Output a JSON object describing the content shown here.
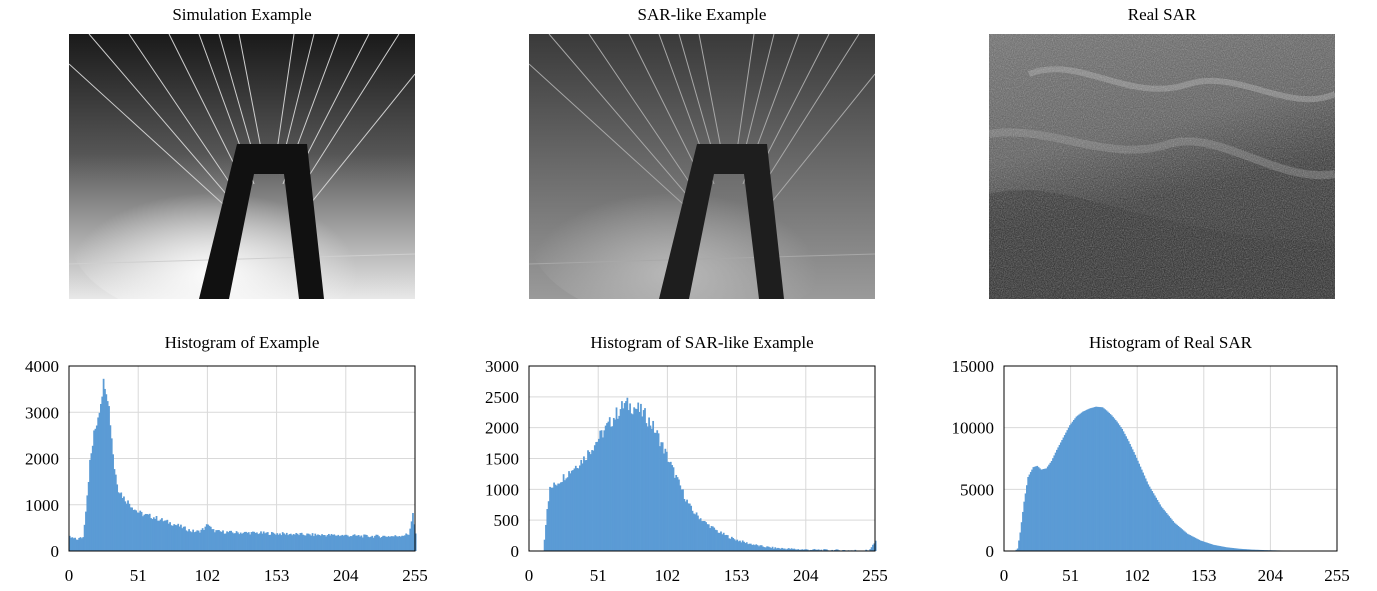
{
  "image_titles": [
    "Simulation Example",
    "SAR-like Example",
    "Real SAR"
  ],
  "colors": {
    "bar": "#5b9bd5",
    "grid": "#d9d9d9",
    "axis": "#000000"
  },
  "chart_data": [
    {
      "type": "bar",
      "title": "Histogram of Example",
      "xlabel": "",
      "ylabel": "",
      "xlim": [
        0,
        255
      ],
      "ylim": [
        0,
        4000
      ],
      "xticks": [
        "0",
        "51",
        "102",
        "153",
        "204",
        "255"
      ],
      "yticks": [
        "0",
        "1000",
        "2000",
        "3000",
        "4000"
      ],
      "grid": true,
      "x_sample": [
        0,
        5,
        10,
        12,
        15,
        18,
        20,
        22,
        24,
        26,
        28,
        30,
        33,
        36,
        40,
        45,
        50,
        55,
        60,
        70,
        80,
        90,
        95,
        100,
        102,
        105,
        110,
        120,
        140,
        160,
        180,
        200,
        220,
        240,
        250,
        253,
        255
      ],
      "values": [
        300,
        250,
        300,
        900,
        1900,
        2500,
        2800,
        3100,
        3500,
        3700,
        3400,
        2800,
        1800,
        1350,
        1150,
        1000,
        850,
        780,
        750,
        650,
        550,
        430,
        420,
        500,
        600,
        450,
        420,
        400,
        390,
        370,
        350,
        340,
        320,
        320,
        360,
        800,
        350
      ]
    },
    {
      "type": "bar",
      "title": "Histogram of SAR-like Example",
      "xlabel": "",
      "ylabel": "",
      "xlim": [
        0,
        255
      ],
      "ylim": [
        0,
        3000
      ],
      "xticks": [
        "0",
        "51",
        "102",
        "153",
        "204",
        "255"
      ],
      "yticks": [
        "0",
        "500",
        "1000",
        "1500",
        "2000",
        "2500",
        "3000"
      ],
      "grid": true,
      "x_sample": [
        0,
        10,
        11,
        13,
        15,
        20,
        25,
        30,
        35,
        40,
        45,
        50,
        55,
        60,
        65,
        70,
        75,
        80,
        85,
        90,
        95,
        100,
        105,
        110,
        115,
        120,
        130,
        140,
        150,
        160,
        170,
        180,
        200,
        220,
        240,
        250,
        255
      ],
      "values": [
        0,
        0,
        200,
        700,
        1000,
        1100,
        1200,
        1300,
        1400,
        1500,
        1650,
        1800,
        1950,
        2100,
        2250,
        2380,
        2350,
        2300,
        2200,
        2050,
        1850,
        1600,
        1350,
        1100,
        850,
        650,
        450,
        300,
        200,
        130,
        80,
        50,
        25,
        15,
        10,
        10,
        150
      ]
    },
    {
      "type": "bar",
      "title": "Histogram of Real SAR",
      "xlabel": "",
      "ylabel": "",
      "xlim": [
        0,
        255
      ],
      "ylim": [
        0,
        15000
      ],
      "xticks": [
        "0",
        "51",
        "102",
        "153",
        "204",
        "255"
      ],
      "yticks": [
        "0",
        "5000",
        "10000",
        "15000"
      ],
      "grid": true,
      "x_sample": [
        0,
        8,
        10,
        12,
        15,
        18,
        22,
        25,
        28,
        32,
        36,
        40,
        45,
        50,
        55,
        60,
        65,
        70,
        75,
        78,
        82,
        86,
        90,
        95,
        100,
        105,
        110,
        120,
        130,
        140,
        150,
        160,
        170,
        180,
        190,
        200,
        210,
        220,
        230,
        240,
        250,
        255
      ],
      "values": [
        0,
        0,
        200,
        1500,
        4000,
        6000,
        6800,
        6900,
        6600,
        6700,
        7300,
        8200,
        9200,
        10200,
        10900,
        11300,
        11550,
        11700,
        11650,
        11400,
        11000,
        10500,
        9900,
        8900,
        7800,
        6600,
        5400,
        3600,
        2300,
        1400,
        850,
        500,
        300,
        180,
        110,
        70,
        45,
        30,
        20,
        12,
        8,
        5
      ]
    }
  ]
}
